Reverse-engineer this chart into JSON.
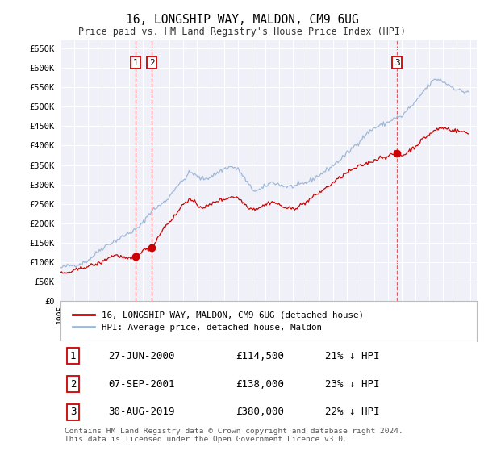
{
  "title": "16, LONGSHIP WAY, MALDON, CM9 6UG",
  "subtitle": "Price paid vs. HM Land Registry's House Price Index (HPI)",
  "ylim": [
    0,
    670000
  ],
  "yticks": [
    0,
    50000,
    100000,
    150000,
    200000,
    250000,
    300000,
    350000,
    400000,
    450000,
    500000,
    550000,
    600000,
    650000
  ],
  "ytick_labels": [
    "£0",
    "£50K",
    "£100K",
    "£150K",
    "£200K",
    "£250K",
    "£300K",
    "£350K",
    "£400K",
    "£450K",
    "£500K",
    "£550K",
    "£600K",
    "£650K"
  ],
  "background_color": "#ffffff",
  "plot_bg_color": "#f0f0f8",
  "grid_color": "#ffffff",
  "hpi_color": "#a0b8d8",
  "price_color": "#cc0000",
  "marker_color": "#cc0000",
  "legend_label_price": "16, LONGSHIP WAY, MALDON, CM9 6UG (detached house)",
  "legend_label_hpi": "HPI: Average price, detached house, Maldon",
  "transactions": [
    {
      "id": 1,
      "date": "27-JUN-2000",
      "price": 114500,
      "pct": "21%",
      "dir": "↓",
      "x": 2000.49
    },
    {
      "id": 2,
      "date": "07-SEP-2001",
      "price": 138000,
      "pct": "23%",
      "dir": "↓",
      "x": 2001.68
    },
    {
      "id": 3,
      "date": "30-AUG-2019",
      "price": 380000,
      "pct": "22%",
      "dir": "↓",
      "x": 2019.66
    }
  ],
  "copyright_text": "Contains HM Land Registry data © Crown copyright and database right 2024.\nThis data is licensed under the Open Government Licence v3.0."
}
